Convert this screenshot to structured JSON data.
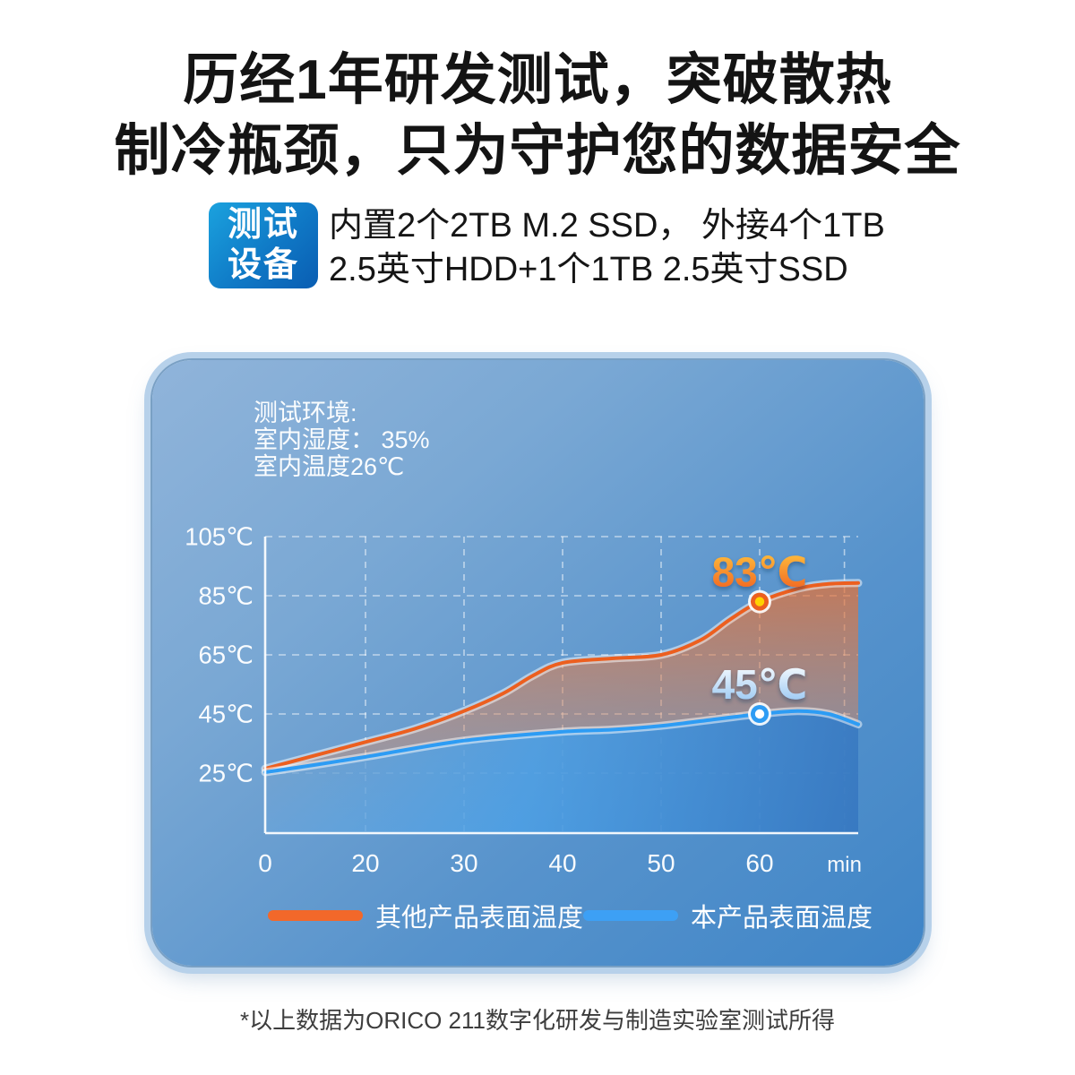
{
  "title": {
    "line1": "历经1年研发测试，突破散热",
    "line2": "制冷瓶颈，只为守护您的数据安全"
  },
  "test_device": {
    "badge": {
      "line1": "测试",
      "line2": "设备"
    },
    "description": {
      "line1": "内置2个2TB M.2 SSD， 外接4个1TB",
      "line2": "2.5英寸HDD+1个1TB 2.5英寸SSD"
    }
  },
  "panel": {
    "environment": {
      "line1": "测试环境:",
      "line2": "室内湿度： 35%",
      "line3": "室内温度26℃"
    }
  },
  "chart_data": {
    "type": "area",
    "x_unit": "min",
    "grid": "dashed",
    "ylim": [
      5,
      105
    ],
    "xlim_minutes": [
      0,
      70
    ],
    "x_ticks": [
      {
        "label": "0",
        "t": 0
      },
      {
        "label": "20",
        "t": 20
      },
      {
        "label": "30",
        "t": 30
      },
      {
        "label": "40",
        "t": 40
      },
      {
        "label": "50",
        "t": 50
      },
      {
        "label": "60",
        "t": 60
      },
      {
        "label": "min",
        "t": 68.6,
        "unit": true
      }
    ],
    "y_ticks": [
      {
        "label": "105℃",
        "value": 105
      },
      {
        "label": "85℃",
        "value": 85
      },
      {
        "label": "65℃",
        "value": 65
      },
      {
        "label": "45℃",
        "value": 45
      },
      {
        "label": "25℃",
        "value": 25
      }
    ],
    "series": [
      {
        "name": "其他产品表面温度",
        "color": "#ec5f1f",
        "marker_center": "#ffd200",
        "points": [
          [
            0,
            26.5
          ],
          [
            10,
            31
          ],
          [
            20,
            35.5
          ],
          [
            25,
            40
          ],
          [
            30,
            46
          ],
          [
            34,
            52
          ],
          [
            37,
            58
          ],
          [
            40,
            62.3
          ],
          [
            45,
            63.8
          ],
          [
            50,
            65
          ],
          [
            54,
            70
          ],
          [
            57,
            77
          ],
          [
            60,
            83
          ],
          [
            64,
            87.5
          ],
          [
            67,
            89
          ],
          [
            70,
            89.3
          ]
        ]
      },
      {
        "name": "本产品表面温度",
        "color": "#2d9cf4",
        "marker_center": "#ffffff",
        "points": [
          [
            0,
            25.3
          ],
          [
            10,
            27.8
          ],
          [
            20,
            30.5
          ],
          [
            30,
            36
          ],
          [
            40,
            39
          ],
          [
            45,
            39.7
          ],
          [
            50,
            41
          ],
          [
            55,
            43
          ],
          [
            60,
            45
          ],
          [
            64,
            46
          ],
          [
            67,
            45
          ],
          [
            70,
            41.5
          ]
        ]
      }
    ],
    "annotations": [
      {
        "series": 0,
        "t": 60,
        "temp": 83,
        "label": "83℃"
      },
      {
        "series": 1,
        "t": 60,
        "temp": 45,
        "label": "45℃"
      }
    ],
    "legend_position": "bottom"
  },
  "legend": {
    "items": [
      {
        "label": "其他产品表面温度",
        "color": "#f2682a"
      },
      {
        "label": "本产品表面温度",
        "color": "#3da0f5"
      }
    ]
  },
  "footer": {
    "text": "*以上数据为ORICO 211数字化研发与制造实验室测试所得"
  },
  "colors": {
    "badge_gradient_start": "#1ba2de",
    "badge_gradient_end": "#0a5db2",
    "panel_top": "#90b4da",
    "panel_bottom": "#3f85c7",
    "accent_orange": "#f2682a",
    "accent_blue": "#3da0f5",
    "hot_label_top": "#ffc63e",
    "hot_label_bottom": "#f05a1e",
    "cool_label_top": "#ffffff",
    "cool_label_bottom": "#8ec2f2"
  }
}
